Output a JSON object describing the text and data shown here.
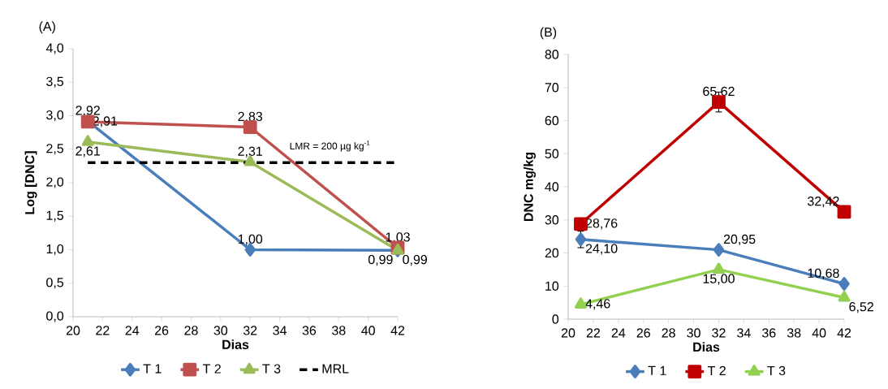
{
  "chart_data": [
    {
      "type": "line",
      "title": "(A)",
      "xlabel": "Dias",
      "ylabel": "Log [DNC]",
      "xlim": [
        20,
        42
      ],
      "xticks": [
        20,
        22,
        24,
        26,
        28,
        30,
        32,
        34,
        36,
        38,
        40,
        42
      ],
      "ylim": [
        0,
        4
      ],
      "yticks": [
        {
          "value": 0,
          "label": "0,0"
        },
        {
          "value": 0.5,
          "label": "0,5"
        },
        {
          "value": 1,
          "label": "1,0"
        },
        {
          "value": 1.5,
          "label": "1,5"
        },
        {
          "value": 2,
          "label": "2,0"
        },
        {
          "value": 2.5,
          "label": "2,5"
        },
        {
          "value": 3,
          "label": "3,0"
        },
        {
          "value": 3.5,
          "label": "3,5"
        },
        {
          "value": 4,
          "label": "4,0"
        }
      ],
      "x": [
        21,
        32,
        42
      ],
      "legend": "bottom",
      "series": [
        {
          "name": "T 1",
          "color": "#4a7ebb",
          "marker": "diamond",
          "values": [
            2.92,
            1.0,
            0.99
          ],
          "value_labels": [
            "2,92",
            "1,00",
            "0,99"
          ]
        },
        {
          "name": "T 2",
          "color": "#c0504d",
          "marker": "square",
          "values": [
            2.91,
            2.83,
            1.03
          ],
          "value_labels": [
            "2,91",
            "2,83",
            "1,03"
          ]
        },
        {
          "name": "T 3",
          "color": "#9bbb59",
          "marker": "triangle",
          "values": [
            2.61,
            2.31,
            0.99
          ],
          "value_labels": [
            "2,61",
            "2,31",
            "0,99"
          ]
        },
        {
          "name": "MRL",
          "color": "#000000",
          "marker": "none",
          "line_style": "dashed",
          "x": [
            21,
            42
          ],
          "values": [
            2.3,
            2.3
          ]
        }
      ],
      "annotations": [
        "LMR = 200 µg kg$^{-1}$"
      ]
    },
    {
      "type": "line",
      "title": "(B)",
      "xlabel": "Dias",
      "ylabel": "DNC mg/kg",
      "xlim": [
        20,
        42
      ],
      "xticks": [
        20,
        22,
        24,
        26,
        28,
        30,
        32,
        34,
        36,
        38,
        40,
        42
      ],
      "ylim": [
        0,
        80
      ],
      "yticks": [
        0,
        10,
        20,
        30,
        40,
        50,
        60,
        70,
        80
      ],
      "x": [
        21,
        32,
        42
      ],
      "legend": "bottom",
      "series": [
        {
          "name": "T 1",
          "color": "#4a7ebb",
          "marker": "diamond",
          "values": [
            24.1,
            20.95,
            10.68
          ],
          "errors": [
            2.5,
            null,
            null
          ],
          "value_labels": [
            "24,10",
            "20,95",
            "10,68"
          ]
        },
        {
          "name": "T 2",
          "color": "#c00000",
          "marker": "square",
          "values": [
            28.76,
            65.62,
            32.42
          ],
          "errors": [
            null,
            3,
            null
          ],
          "value_labels": [
            "28,76",
            "65,62",
            "32,42"
          ]
        },
        {
          "name": "T 3",
          "color": "#92d050",
          "marker": "triangle",
          "values": [
            4.46,
            15.0,
            6.52
          ],
          "value_labels": [
            "4,46",
            "15,00",
            "6,52"
          ]
        }
      ]
    }
  ]
}
